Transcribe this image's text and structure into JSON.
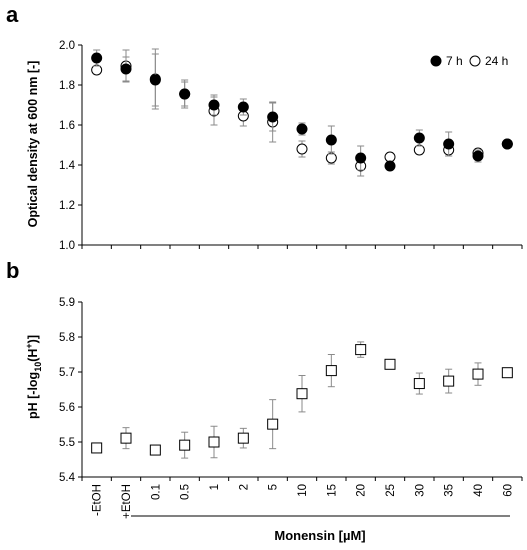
{
  "panels": {
    "a": "a",
    "b": "b"
  },
  "categories": [
    "-EtOH",
    "+EtOH",
    "0.1",
    "0.5",
    "1",
    "2",
    "5",
    "10",
    "15",
    "20",
    "25",
    "30",
    "35",
    "40",
    "60"
  ],
  "xlabel": "Monensin [µM]",
  "chart_data": [
    {
      "type": "scatter",
      "panel": "a",
      "categories": [
        "-EtOH",
        "+EtOH",
        "0.1",
        "0.5",
        "1",
        "2",
        "5",
        "10",
        "15",
        "20",
        "25",
        "30",
        "35",
        "40",
        "60"
      ],
      "ylabel": "Optical density at 600 nm [-]",
      "ylim": [
        1.0,
        2.0
      ],
      "yticks": [
        "1.0",
        "1.2",
        "1.4",
        "1.6",
        "1.8",
        "2.0"
      ],
      "legend_position": "top-right",
      "series": [
        {
          "name": "7 h",
          "marker": "filled-circle",
          "values": [
            1.935,
            1.88,
            1.825,
            1.755,
            1.7,
            1.69,
            1.64,
            1.58,
            1.525,
            1.435,
            1.395,
            1.535,
            1.505,
            1.445,
            1.505
          ],
          "errors": [
            0.04,
            0.06,
            0.13,
            0.07,
            0.05,
            0.04,
            0.07,
            0.03,
            0.07,
            0.06,
            0.01,
            0.04,
            0.06,
            0.03,
            0.01
          ]
        },
        {
          "name": "24 h",
          "marker": "open-circle",
          "values": [
            1.875,
            1.895,
            1.83,
            1.755,
            1.67,
            1.645,
            1.615,
            1.48,
            1.435,
            1.395,
            1.44,
            1.475,
            1.475,
            1.46,
            1.505
          ],
          "errors": [
            0.02,
            0.08,
            0.15,
            0.06,
            0.07,
            0.05,
            0.1,
            0.04,
            0.03,
            0.05,
            0.01,
            0.02,
            0.03,
            0.02,
            0.01
          ]
        }
      ]
    },
    {
      "type": "scatter",
      "panel": "b",
      "categories": [
        "-EtOH",
        "+EtOH",
        "0.1",
        "0.5",
        "1",
        "2",
        "5",
        "10",
        "15",
        "20",
        "25",
        "30",
        "35",
        "40",
        "60"
      ],
      "ylabel": "pH [-log10(H+)]",
      "ylim": [
        5.4,
        5.9
      ],
      "yticks": [
        "5.4",
        "5.5",
        "5.6",
        "5.7",
        "5.8",
        "5.9"
      ],
      "series": [
        {
          "marker": "open-square",
          "values": [
            5.483,
            5.511,
            5.477,
            5.491,
            5.5,
            5.511,
            5.551,
            5.638,
            5.704,
            5.764,
            5.722,
            5.667,
            5.674,
            5.694,
            5.698
          ],
          "errors": [
            0.012,
            0.03,
            0.01,
            0.037,
            0.045,
            0.028,
            0.07,
            0.052,
            0.046,
            0.022,
            0.006,
            0.03,
            0.034,
            0.032,
            0.005
          ]
        }
      ]
    }
  ]
}
